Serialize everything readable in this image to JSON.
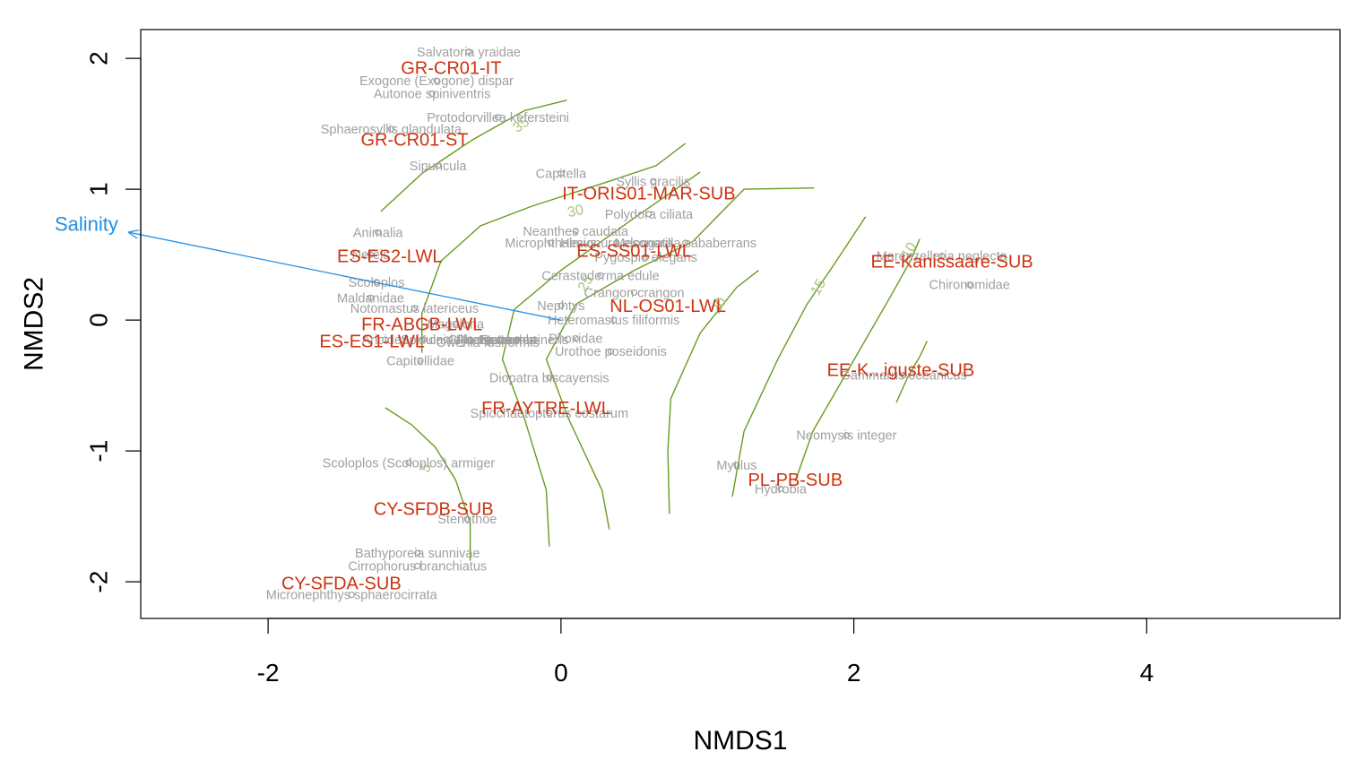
{
  "chart_data": {
    "type": "scatter",
    "subtype": "NMDS ordination biplot",
    "xlabel": "NMDS1",
    "ylabel": "NMDS2",
    "xlim": [
      -2.87,
      5.32
    ],
    "ylim": [
      -2.28,
      2.22
    ],
    "x_ticks": [
      -2,
      0,
      2,
      4
    ],
    "x_tick_labels": [
      "-2",
      "0",
      "2",
      "4"
    ],
    "y_ticks": [
      -2,
      -1,
      0,
      1,
      2
    ],
    "y_tick_labels": [
      "-2",
      "-1",
      "0",
      "1",
      "2"
    ],
    "grid": false,
    "colors": {
      "species": "#a0a0a0",
      "site": "#cc3311",
      "contour": "#6b9a1f",
      "contour_label": "#a8c47a",
      "env_vector": "#1f8fe6",
      "axis": "#000000"
    },
    "species": [
      {
        "label": "Salvatoria yraidae",
        "x": -0.63,
        "y": 2.05
      },
      {
        "label": "Exogone (Exogone) dispar",
        "x": -0.85,
        "y": 1.83
      },
      {
        "label": "Autonoe spiniventris",
        "x": -0.88,
        "y": 1.73
      },
      {
        "label": "Protodorvillea kefersteini",
        "x": -0.43,
        "y": 1.55
      },
      {
        "label": "Sphaerosyllis glandulata",
        "x": -1.16,
        "y": 1.46
      },
      {
        "label": "Sipuncula",
        "x": -0.84,
        "y": 1.18
      },
      {
        "label": "Capitella",
        "x": 0.0,
        "y": 1.12
      },
      {
        "label": "Syllis gracilis",
        "x": 0.63,
        "y": 1.06
      },
      {
        "label": "Polydora ciliata",
        "x": 0.6,
        "y": 0.81
      },
      {
        "label": "Animalia",
        "x": -1.25,
        "y": 0.67
      },
      {
        "label": "Neanthes caudata",
        "x": 0.1,
        "y": 0.68
      },
      {
        "label": "Microphthalmus",
        "x": -0.07,
        "y": 0.59
      },
      {
        "label": "Hesionura elongata",
        "x": 0.38,
        "y": 0.59
      },
      {
        "label": "Mesonerilla sababerrans",
        "x": 0.85,
        "y": 0.59
      },
      {
        "label": "Pygospio elegans",
        "x": 0.58,
        "y": 0.48
      },
      {
        "label": "Nereis",
        "x": -1.3,
        "y": 0.5
      },
      {
        "label": "Marenzelleria neglecta",
        "x": 2.6,
        "y": 0.49
      },
      {
        "label": "Cerastoderma edule",
        "x": 0.27,
        "y": 0.34
      },
      {
        "label": "Scoloplos",
        "x": -1.26,
        "y": 0.29
      },
      {
        "label": "Chironomidae",
        "x": 2.79,
        "y": 0.27
      },
      {
        "label": "Crangon crangon",
        "x": 0.5,
        "y": 0.21
      },
      {
        "label": "Maldanidae",
        "x": -1.3,
        "y": 0.17
      },
      {
        "label": "Nephtys",
        "x": 0.0,
        "y": 0.11
      },
      {
        "label": "Notomastus latericeus",
        "x": -1.0,
        "y": 0.09
      },
      {
        "label": "Heteromastus filiformis",
        "x": 0.36,
        "y": 0.0
      },
      {
        "label": "Magelona",
        "x": -0.72,
        "y": -0.03
      },
      {
        "label": "Aricidea",
        "x": -1.2,
        "y": -0.15
      },
      {
        "label": "Spisula",
        "x": -0.95,
        "y": -0.15
      },
      {
        "label": "Aonidella",
        "x": -0.78,
        "y": -0.15
      },
      {
        "label": "Glycera",
        "x": -0.62,
        "y": -0.15
      },
      {
        "label": "Pherusa",
        "x": -0.55,
        "y": -0.15
      },
      {
        "label": "Eteone",
        "x": -0.42,
        "y": -0.15
      },
      {
        "label": "Nemertea",
        "x": -0.36,
        "y": -0.15
      },
      {
        "label": "Lanice",
        "x": -0.3,
        "y": -0.15
      },
      {
        "label": "Lumbrineris",
        "x": -0.18,
        "y": -0.15
      },
      {
        "label": "Owenia fusiformis",
        "x": -0.5,
        "y": -0.17
      },
      {
        "label": "Phoxidae",
        "x": 0.1,
        "y": -0.14
      },
      {
        "label": "Urothoe poseidonis",
        "x": 0.34,
        "y": -0.24
      },
      {
        "label": "Capitellidae",
        "x": -0.96,
        "y": -0.31
      },
      {
        "label": "Diopatra biscayensis",
        "x": -0.08,
        "y": -0.44
      },
      {
        "label": "Gammarus oceanicus",
        "x": 2.34,
        "y": -0.42
      },
      {
        "label": "Spiochaetopterus costarum",
        "x": -0.08,
        "y": -0.71
      },
      {
        "label": "Neomysis integer",
        "x": 1.95,
        "y": -0.88
      },
      {
        "label": "Scoloplos (Scoloplos) armiger",
        "x": -1.04,
        "y": -1.09
      },
      {
        "label": "Mytilus",
        "x": 1.2,
        "y": -1.11
      },
      {
        "label": "Hydrobia",
        "x": 1.5,
        "y": -1.29
      },
      {
        "label": "Stenothoe",
        "x": -0.64,
        "y": -1.52
      },
      {
        "label": "Bathyporeia sunnivae",
        "x": -0.98,
        "y": -1.78
      },
      {
        "label": "Cirrophorus branchiatus",
        "x": -0.98,
        "y": -1.88
      },
      {
        "label": "Micronephthys sphaerocirrata",
        "x": -1.43,
        "y": -2.1
      }
    ],
    "sites": [
      {
        "label": "GR-CR01-IT",
        "x": -0.75,
        "y": 1.93
      },
      {
        "label": "GR-CR01-ST",
        "x": -1.0,
        "y": 1.38
      },
      {
        "label": "IT-ORIS01-MAR-SUB",
        "x": 0.6,
        "y": 0.97
      },
      {
        "label": "ES-ES2-LWL",
        "x": -1.17,
        "y": 0.49
      },
      {
        "label": "ES-SS01-LWL",
        "x": 0.5,
        "y": 0.53
      },
      {
        "label": "EE-Kanissaare-SUB",
        "x": 2.67,
        "y": 0.45
      },
      {
        "label": "NL-OS01-LWL",
        "x": 0.73,
        "y": 0.11
      },
      {
        "label": "FR-ABGB-LWL",
        "x": -0.95,
        "y": -0.03
      },
      {
        "label": "ES-ES1-LWL",
        "x": -1.29,
        "y": -0.16
      },
      {
        "label": "EE-K...iguste-SUB",
        "x": 2.32,
        "y": -0.38
      },
      {
        "label": "FR-AYTRE-LWL",
        "x": -0.1,
        "y": -0.67
      },
      {
        "label": "PL-PB-SUB",
        "x": 1.6,
        "y": -1.22
      },
      {
        "label": "CY-SFDB-SUB",
        "x": -0.87,
        "y": -1.44
      },
      {
        "label": "CY-SFDA-SUB",
        "x": -1.5,
        "y": -2.01
      }
    ],
    "env_vectors": [
      {
        "label": "Salinity",
        "x": -2.95,
        "y": 0.67
      }
    ],
    "contours": [
      {
        "level": 35,
        "points": [
          [
            -1.23,
            0.83
          ],
          [
            -0.95,
            1.12
          ],
          [
            -0.6,
            1.38
          ],
          [
            -0.25,
            1.6
          ],
          [
            0.04,
            1.68
          ]
        ]
      },
      {
        "level": 30,
        "points": [
          [
            -0.95,
            -0.25
          ],
          [
            -0.95,
            0.05
          ],
          [
            -0.82,
            0.45
          ],
          [
            -0.55,
            0.72
          ],
          [
            -0.2,
            0.87
          ],
          [
            0.3,
            1.05
          ],
          [
            0.65,
            1.18
          ],
          [
            0.85,
            1.35
          ]
        ]
      },
      {
        "level": 25,
        "points": [
          [
            -0.62,
            -1.84
          ],
          [
            -0.62,
            -1.55
          ],
          [
            -0.72,
            -1.22
          ],
          [
            -0.86,
            -0.97
          ],
          [
            -1.02,
            -0.8
          ],
          [
            -1.2,
            -0.67
          ]
        ]
      },
      {
        "level": 25,
        "points": [
          [
            -0.08,
            -1.73
          ],
          [
            -0.1,
            -1.3
          ],
          [
            -0.25,
            -0.75
          ],
          [
            -0.4,
            -0.3
          ],
          [
            -0.32,
            0.08
          ],
          [
            0.0,
            0.38
          ],
          [
            0.5,
            0.78
          ],
          [
            0.95,
            1.13
          ]
        ]
      },
      {
        "level": 20,
        "points": [
          [
            0.33,
            -1.6
          ],
          [
            0.28,
            -1.3
          ],
          [
            0.05,
            -0.75
          ],
          [
            -0.1,
            -0.3
          ],
          [
            0.1,
            0.12
          ],
          [
            0.5,
            0.38
          ],
          [
            0.9,
            0.6
          ],
          [
            1.25,
            1.0
          ],
          [
            1.73,
            1.01
          ]
        ]
      },
      {
        "level": 15,
        "points": [
          [
            0.74,
            -1.48
          ],
          [
            0.73,
            -1.0
          ],
          [
            0.75,
            -0.6
          ],
          [
            0.95,
            -0.1
          ],
          [
            1.2,
            0.25
          ],
          [
            1.35,
            0.38
          ]
        ]
      },
      {
        "level": 15,
        "points": [
          [
            1.17,
            -1.35
          ],
          [
            1.25,
            -0.85
          ],
          [
            1.48,
            -0.3
          ],
          [
            1.68,
            0.12
          ],
          [
            1.88,
            0.45
          ],
          [
            2.08,
            0.79
          ]
        ]
      },
      {
        "level": 10,
        "points": [
          [
            1.6,
            -1.23
          ],
          [
            1.72,
            -0.85
          ],
          [
            1.9,
            -0.5
          ],
          [
            2.08,
            -0.15
          ],
          [
            2.25,
            0.18
          ],
          [
            2.39,
            0.46
          ],
          [
            2.45,
            0.62
          ]
        ]
      },
      {
        "level": 5,
        "points": [
          [
            2.29,
            -0.63
          ],
          [
            2.37,
            -0.43
          ],
          [
            2.45,
            -0.28
          ],
          [
            2.5,
            -0.16
          ]
        ]
      }
    ],
    "contour_labels": [
      {
        "text": "35",
        "x": -0.27,
        "y": 1.49,
        "angle": -35
      },
      {
        "text": "30",
        "x": 0.1,
        "y": 0.83,
        "angle": -12
      },
      {
        "text": "25",
        "x": 0.17,
        "y": 0.28,
        "angle": -60
      },
      {
        "text": "20",
        "x": 1.08,
        "y": 0.11,
        "angle": -60
      },
      {
        "text": "15",
        "x": 1.76,
        "y": 0.25,
        "angle": -60
      },
      {
        "text": "10",
        "x": 2.38,
        "y": 0.53,
        "angle": -60
      },
      {
        "text": "5",
        "x": -0.92,
        "y": -1.13,
        "angle": -60
      }
    ]
  }
}
